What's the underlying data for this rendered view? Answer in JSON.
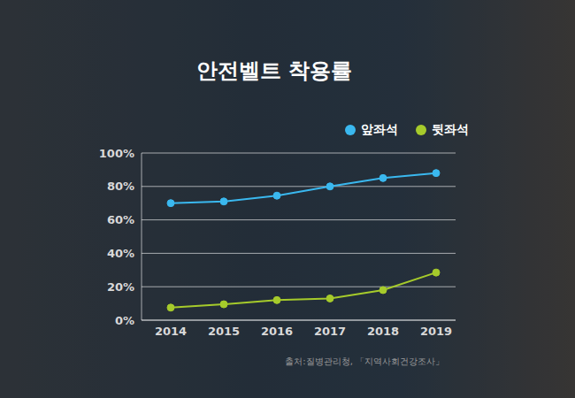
{
  "chart_data": {
    "type": "line",
    "title": "안전벨트 착용률",
    "categories": [
      "2014",
      "2015",
      "2016",
      "2017",
      "2018",
      "2019"
    ],
    "series": [
      {
        "name": "앞좌석",
        "color": "#3ab8ef",
        "marker": "circle",
        "values": [
          70,
          71,
          74.5,
          80,
          85,
          88
        ]
      },
      {
        "name": "뒷좌석",
        "color": "#a6cb2b",
        "marker": "circle",
        "values": [
          7.5,
          9.5,
          12,
          13,
          18,
          28.5
        ]
      }
    ],
    "ylim": [
      0,
      100
    ],
    "yticks": [
      {
        "value": 0,
        "label": "0%"
      },
      {
        "value": 20,
        "label": "20%"
      },
      {
        "value": 40,
        "label": "40%"
      },
      {
        "value": 60,
        "label": "60%"
      },
      {
        "value": 80,
        "label": "80%"
      },
      {
        "value": 100,
        "label": "100%"
      }
    ],
    "grid": true,
    "legend": "top right",
    "annotations": [
      "출처:질병관리청, 「지역사회건강조사」"
    ]
  }
}
